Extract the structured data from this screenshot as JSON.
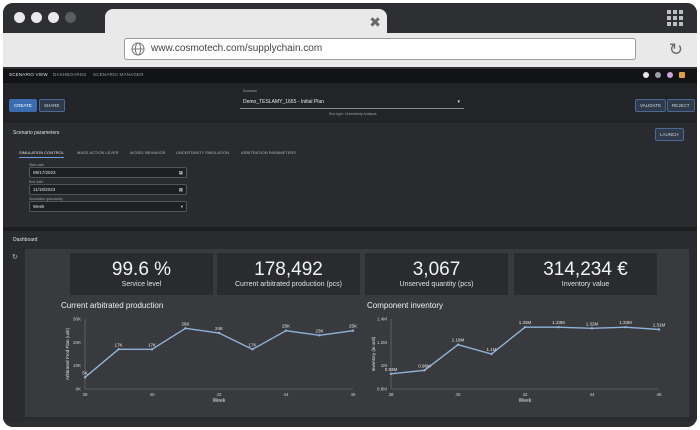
{
  "browser": {
    "url": "www.cosmotech.com/supplychain.com"
  },
  "nav": {
    "items": [
      "SCENARIO VIEW",
      "DASHBOARDS",
      "SCENARIO MANAGER"
    ]
  },
  "scenario": {
    "create_label": "CREATE",
    "share_label": "SHARE",
    "select_label": "Scenario",
    "select_value": "Demo_TESLAMY_1665 - Initial Plan",
    "run_type": "Run type: Uncertainty Analysis",
    "validate_label": "VALIDATE",
    "reject_label": "REJECT"
  },
  "params": {
    "title": "Scenario parameters",
    "launch_label": "LAUNCH",
    "tabs": [
      "SIMULATION CONTROL",
      "MASS ACTION LEVER",
      "MODEL BEHAVIOR",
      "UNCERTAINTY SIMULATION",
      "ARBITRATION PARAMETERS"
    ],
    "start_label": "Start date",
    "start_value": "09/17/2023",
    "end_label": "End date",
    "end_value": "11/18/2023",
    "gran_label": "Simulation granularity",
    "gran_value": "Week"
  },
  "dashboard": {
    "title": "Dashboard",
    "kpis": [
      {
        "value": "99.6 %",
        "label": "Service level"
      },
      {
        "value": "178,492",
        "label": "Current arbitrated production (pcs)"
      },
      {
        "value": "3,067",
        "label": "Unserved quantity (pcs)"
      },
      {
        "value": "314,234 €",
        "label": "Inventory value"
      }
    ]
  },
  "chart_data": [
    {
      "type": "line",
      "title": "Current arbitrated production",
      "xlabel": "Week",
      "ylabel": "Arbitrated Prod Plan (unit)",
      "x_ticks": [
        "38",
        "",
        "40",
        "",
        "42",
        "",
        "44",
        "",
        "46"
      ],
      "y_ticks": [
        "0K",
        "10K",
        "20K",
        "30K"
      ],
      "ylim": [
        0,
        30000
      ],
      "x": [
        38,
        39,
        40,
        41,
        42,
        43,
        44,
        45,
        46
      ],
      "values": [
        5000,
        17000,
        17000,
        26000,
        24000,
        17000,
        25000,
        23000,
        25000
      ],
      "labels": [
        "5K",
        "17K",
        "17K",
        "26K",
        "24K",
        "17K",
        "25K",
        "23K",
        "25K"
      ],
      "color": "#8fb3d9"
    },
    {
      "type": "line",
      "title": "Component inventory",
      "xlabel": "Week",
      "ylabel": "Inventory (in unit)",
      "x_ticks": [
        "38",
        "",
        "40",
        "",
        "42",
        "",
        "44",
        "",
        "46"
      ],
      "y_ticks": [
        "0.8M",
        "1M",
        "1.2M",
        "1.4M"
      ],
      "ylim": [
        0.8,
        1.4
      ],
      "x": [
        38,
        39,
        40,
        41,
        42,
        43,
        44,
        45,
        46
      ],
      "values": [
        0.93,
        0.96,
        1.18,
        1.1,
        1.33,
        1.33,
        1.32,
        1.33,
        1.31
      ],
      "labels": [
        "0.93M",
        "0.96M",
        "1.18M",
        "1.1M",
        "1.33M",
        "1.33M",
        "1.32M",
        "1.33M",
        "1.31M"
      ],
      "color": "#8fb3d9"
    }
  ]
}
